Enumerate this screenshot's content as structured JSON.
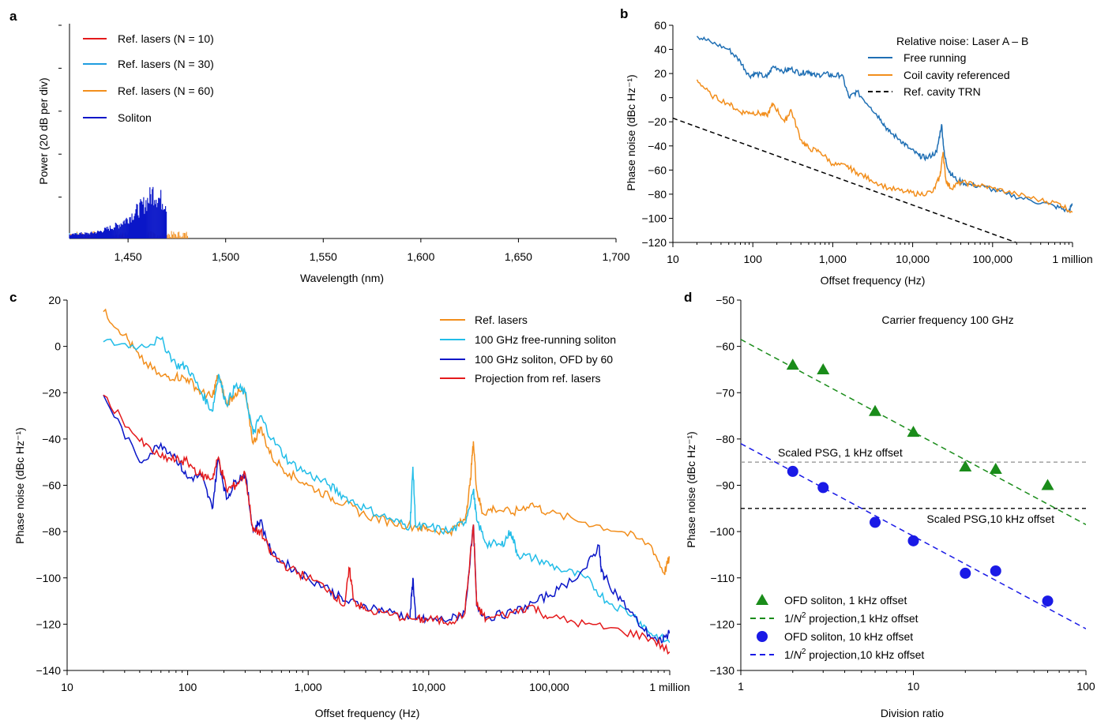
{
  "chart_data": [
    {
      "panel": "a",
      "type": "bar",
      "title": "",
      "xlabel": "Wavelength (nm)",
      "ylabel": "Power (20 dB per div)",
      "xlim": [
        1420,
        1700
      ],
      "xticks": [
        "1,450",
        "1,500",
        "1,550",
        "1,600",
        "1,650",
        "1,700"
      ],
      "xtick_values": [
        1450,
        1500,
        1550,
        1600,
        1650,
        1700
      ],
      "ylim": [
        0,
        1
      ],
      "ytick_values": [
        0.2,
        0.4,
        0.6,
        0.8,
        1.0
      ],
      "legend_position": "top-left",
      "series": [
        {
          "name": "Ref. lasers (N = 10)",
          "color": "#e41a1c"
        },
        {
          "name": "Ref. lasers (N = 30)",
          "color": "#1f9de0"
        },
        {
          "name": "Ref. lasers (N = 60)",
          "color": "#f28e1c"
        },
        {
          "name": "Soliton",
          "color": "#0a16c8"
        }
      ],
      "soliton_envelope": {
        "x": [
          1420,
          1425,
          1430,
          1435,
          1440,
          1445,
          1450,
          1455,
          1458,
          1461,
          1463,
          1465,
          1467,
          1469,
          1470,
          1471
        ],
        "y": [
          0.02,
          0.03,
          0.03,
          0.04,
          0.06,
          0.08,
          0.12,
          0.17,
          0.2,
          0.24,
          0.28,
          0.25,
          0.23,
          0.22,
          0.2,
          0.0
        ]
      },
      "noise_floor": {
        "N10_end": 1455,
        "N30_end": 1460,
        "N60_end": 1481
      }
    },
    {
      "panel": "b",
      "type": "line",
      "title": "",
      "xlabel": "Offset frequency (Hz)",
      "ylabel": "Phase noise (dBc Hz⁻¹)",
      "xscale": "log",
      "xlim": [
        10,
        1000000
      ],
      "ylim": [
        -120,
        60
      ],
      "xticks": [
        "10",
        "100",
        "1,000",
        "10,000",
        "100,000",
        "1 million"
      ],
      "yticks": [
        "60",
        "40",
        "20",
        "0",
        "−20",
        "−40",
        "−60",
        "−80",
        "−100",
        "−120"
      ],
      "ytick_values": [
        60,
        40,
        20,
        0,
        -20,
        -40,
        -60,
        -80,
        -100,
        -120
      ],
      "legend_title": "Relative noise: Laser A – B",
      "legend_position": "top-right",
      "series": [
        {
          "name": "Free running",
          "color": "#1f6fb4",
          "x": [
            20,
            30,
            50,
            70,
            90,
            110,
            150,
            180,
            250,
            300,
            400,
            500,
            600,
            800,
            1000,
            1300,
            1600,
            2000,
            3000,
            4000,
            5000,
            7000,
            9000,
            12000,
            15000,
            20000,
            23000,
            25000,
            28000,
            35000,
            50000,
            80000,
            150000,
            300000,
            600000,
            900000,
            1000000
          ],
          "y": [
            51,
            46,
            40,
            30,
            18,
            20,
            17,
            26,
            22,
            24,
            20,
            22,
            18,
            20,
            18,
            19,
            0,
            5,
            -8,
            -18,
            -28,
            -35,
            -42,
            -48,
            -50,
            -45,
            -22,
            -48,
            -60,
            -68,
            -72,
            -74,
            -80,
            -85,
            -90,
            -94,
            -88
          ]
        },
        {
          "name": "Coil cavity referenced",
          "color": "#f28e1c",
          "x": [
            20,
            30,
            50,
            70,
            90,
            120,
            150,
            180,
            250,
            300,
            400,
            500,
            700,
            1000,
            1500,
            2000,
            3000,
            5000,
            8000,
            12000,
            18000,
            22000,
            24000,
            26000,
            30000,
            40000,
            60000,
            100000,
            200000,
            400000,
            700000,
            1000000
          ],
          "y": [
            15,
            2,
            -5,
            -12,
            -12,
            -13,
            -15,
            -5,
            -20,
            -10,
            -35,
            -42,
            -45,
            -55,
            -57,
            -62,
            -68,
            -75,
            -78,
            -80,
            -78,
            -65,
            -45,
            -68,
            -75,
            -70,
            -72,
            -75,
            -80,
            -85,
            -88,
            -95
          ]
        },
        {
          "name": "Ref. cavity TRN",
          "color": "#000000",
          "dash": true,
          "x": [
            10,
            1000000
          ],
          "y": [
            -17,
            -137
          ]
        }
      ]
    },
    {
      "panel": "c",
      "type": "line",
      "title": "",
      "xlabel": "Offset frequency (Hz)",
      "ylabel": "Phase noise (dBc Hz⁻¹)",
      "xscale": "log",
      "xlim": [
        10,
        1000000
      ],
      "ylim": [
        -140,
        20
      ],
      "xticks": [
        "10",
        "100",
        "1,000",
        "10,000",
        "100,000",
        "1 million"
      ],
      "yticks": [
        "20",
        "0",
        "−20",
        "−40",
        "−60",
        "−80",
        "−100",
        "−120",
        "−140"
      ],
      "ytick_values": [
        20,
        0,
        -20,
        -40,
        -60,
        -80,
        -100,
        -120,
        -140
      ],
      "legend_position": "top-right",
      "series": [
        {
          "name": "Ref. lasers",
          "color": "#f28e1c",
          "x": [
            20,
            30,
            40,
            60,
            80,
            100,
            130,
            160,
            180,
            210,
            250,
            300,
            350,
            400,
            500,
            700,
            1000,
            1500,
            2000,
            3000,
            5000,
            8000,
            10000,
            15000,
            20000,
            22000,
            23500,
            25000,
            28000,
            35000,
            50000,
            70000,
            100000,
            200000,
            400000,
            700000,
            900000,
            1000000
          ],
          "y": [
            15,
            5,
            -5,
            -13,
            -13,
            -14,
            -20,
            -22,
            -12,
            -25,
            -20,
            -20,
            -42,
            -35,
            -48,
            -55,
            -60,
            -65,
            -68,
            -73,
            -76,
            -78,
            -79,
            -80,
            -75,
            -60,
            -41,
            -62,
            -72,
            -70,
            -72,
            -68,
            -72,
            -76,
            -80,
            -86,
            -98,
            -91
          ]
        },
        {
          "name": "100 GHz free-running soliton",
          "color": "#22bde8",
          "x": [
            20,
            40,
            60,
            80,
            100,
            130,
            160,
            180,
            210,
            250,
            300,
            350,
            400,
            500,
            700,
            1000,
            1500,
            2000,
            3000,
            5000,
            7000,
            7400,
            7800,
            10000,
            15000,
            20000,
            23500,
            25000,
            30000,
            40000,
            48000,
            55000,
            80000,
            120000,
            200000,
            300000,
            500000,
            700000,
            1000000
          ],
          "y": [
            2,
            0,
            3,
            -8,
            -9,
            -20,
            -28,
            -12,
            -25,
            -17,
            -20,
            -38,
            -30,
            -40,
            -50,
            -55,
            -60,
            -65,
            -70,
            -75,
            -78,
            -52,
            -78,
            -78,
            -80,
            -76,
            -62,
            -75,
            -85,
            -86,
            -80,
            -90,
            -92,
            -96,
            -100,
            -110,
            -116,
            -124,
            -128
          ]
        },
        {
          "name": "100 GHz soliton, OFD by 60",
          "color": "#0a16c8",
          "x": [
            20,
            40,
            60,
            80,
            100,
            130,
            160,
            180,
            210,
            250,
            300,
            350,
            400,
            500,
            700,
            1000,
            1500,
            2000,
            3000,
            5000,
            7000,
            7400,
            7800,
            10000,
            15000,
            20000,
            23500,
            25000,
            30000,
            50000,
            80000,
            120000,
            200000,
            260000,
            270000,
            290000,
            400000,
            600000,
            800000,
            1000000
          ],
          "y": [
            -21,
            -50,
            -42,
            -48,
            -57,
            -56,
            -70,
            -48,
            -66,
            -58,
            -55,
            -80,
            -75,
            -90,
            -95,
            -100,
            -105,
            -110,
            -112,
            -115,
            -117,
            -100,
            -118,
            -118,
            -118,
            -115,
            -77,
            -112,
            -117,
            -115,
            -110,
            -105,
            -96,
            -86,
            -97,
            -100,
            -110,
            -122,
            -128,
            -124
          ]
        },
        {
          "name": "Projection from ref. lasers",
          "color": "#e41a1c",
          "x": [
            20,
            40,
            60,
            80,
            100,
            130,
            160,
            180,
            210,
            250,
            300,
            350,
            400,
            500,
            700,
            1000,
            1500,
            2000,
            2200,
            2400,
            3000,
            5000,
            8000,
            10000,
            15000,
            20000,
            23500,
            25000,
            30000,
            50000,
            70000,
            100000,
            200000,
            400000,
            700000,
            1000000
          ],
          "y": [
            -21,
            -41,
            -48,
            -49,
            -50,
            -56,
            -57,
            -48,
            -62,
            -60,
            -55,
            -80,
            -80,
            -90,
            -96,
            -100,
            -105,
            -112,
            -96,
            -110,
            -114,
            -116,
            -118,
            -118,
            -119,
            -115,
            -77,
            -112,
            -118,
            -115,
            -112,
            -117,
            -120,
            -123,
            -126,
            -132
          ]
        }
      ]
    },
    {
      "panel": "d",
      "type": "scatter",
      "title": "Carrier frequency 100 GHz",
      "xlabel": "Division ratio",
      "ylabel": "Phase noise (dBc Hz⁻¹)",
      "xscale": "log",
      "xlim": [
        1,
        100
      ],
      "ylim": [
        -130,
        -50
      ],
      "xticks": [
        "1",
        "10",
        "100"
      ],
      "yticks": [
        "−50",
        "−60",
        "−70",
        "−80",
        "−90",
        "−100",
        "−110",
        "−120",
        "−130"
      ],
      "ytick_values": [
        -50,
        -60,
        -70,
        -80,
        -90,
        -100,
        -110,
        -120,
        -130
      ],
      "legend_position": "bottom-left",
      "series": [
        {
          "name": "OFD soliton, 1 kHz offset",
          "color": "#1a8c1a",
          "marker": "triangle",
          "x": [
            2,
            3,
            6,
            10,
            20,
            30,
            60
          ],
          "y": [
            -64,
            -65,
            -74,
            -78.5,
            -86,
            -86.5,
            -90
          ]
        },
        {
          "name": "1/N2 projection,1 kHz offset",
          "color": "#1a8c1a",
          "dash": true,
          "x": [
            1,
            100
          ],
          "y": [
            -58.5,
            -98.5
          ]
        },
        {
          "name": "OFD soliton, 10 kHz offset",
          "color": "#1a1ae6",
          "marker": "circle",
          "x": [
            2,
            3,
            6,
            10,
            20,
            30,
            60
          ],
          "y": [
            -87,
            -90.5,
            -98,
            -102,
            -109,
            -108.5,
            -115
          ]
        },
        {
          "name": "1/N2 projection,10 kHz offset",
          "color": "#1a1ae6",
          "dash": true,
          "x": [
            1,
            100
          ],
          "y": [
            -81,
            -121
          ]
        }
      ],
      "reference_lines": [
        {
          "label": "Scaled PSG, 1 kHz offset",
          "y": -85,
          "color": "#999999"
        },
        {
          "label": "Scaled PSG,10 kHz offset",
          "y": -95,
          "color": "#000000"
        }
      ]
    }
  ],
  "panel_labels": [
    "a",
    "b",
    "c",
    "d"
  ]
}
